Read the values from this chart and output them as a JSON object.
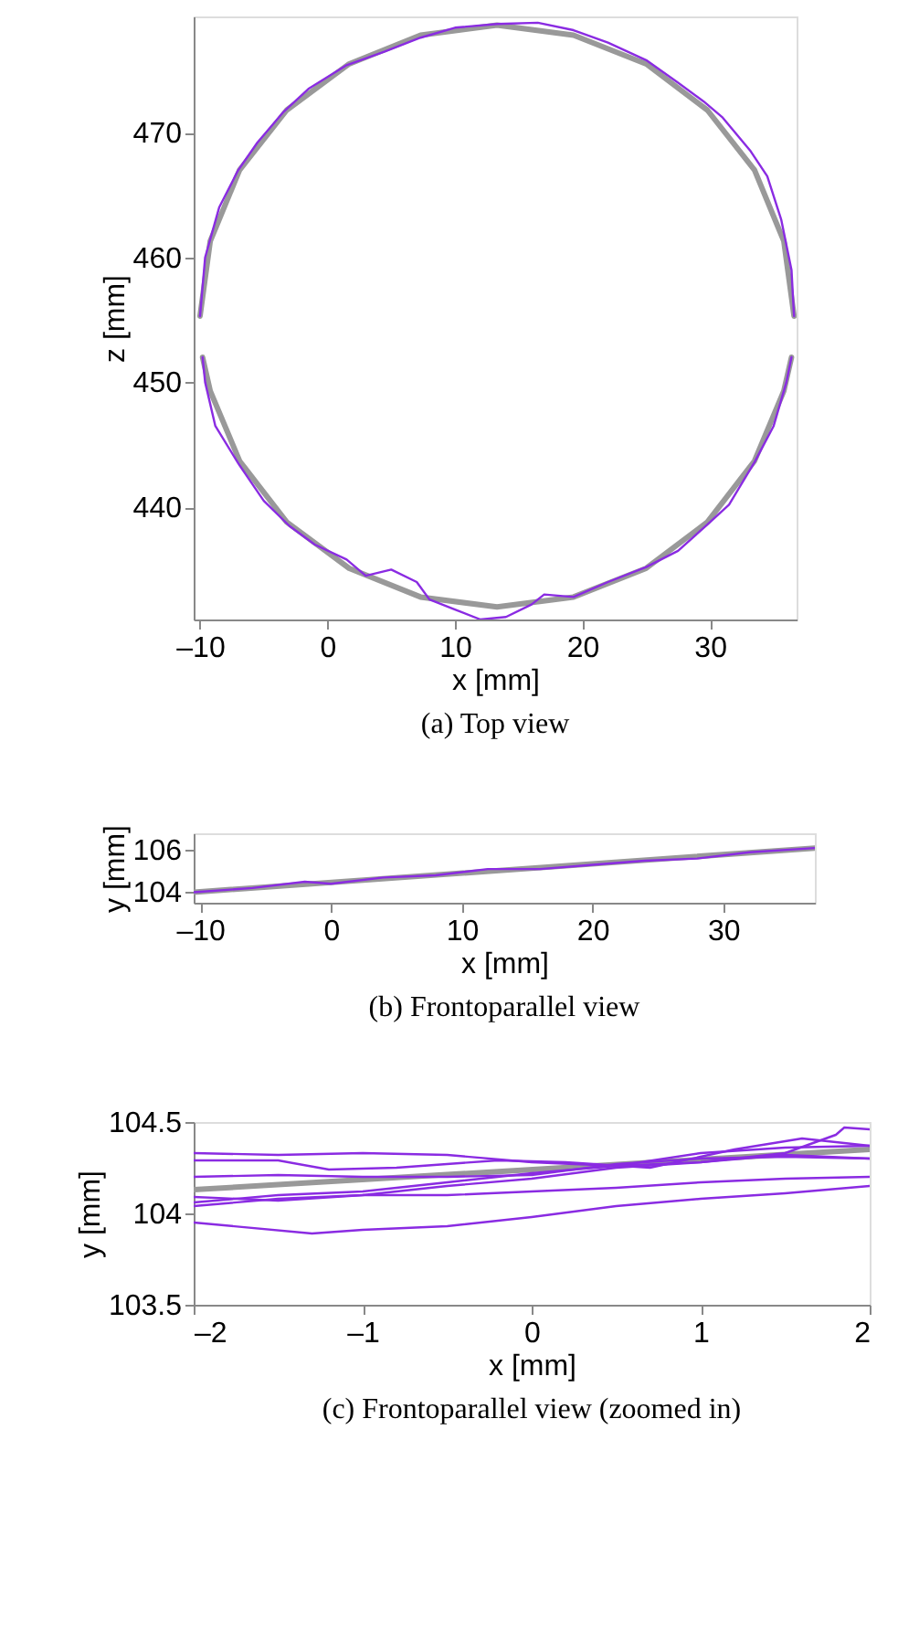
{
  "chart_data": [
    {
      "type": "line",
      "title": "(a) Top view",
      "xlabel": "x [mm]",
      "ylabel": "z [mm]",
      "xlim": [
        -10.5,
        36.8
      ],
      "ylim": [
        431,
        479.3
      ],
      "xticks": [
        {
          "value": -10,
          "label": "–10"
        },
        0,
        10,
        20,
        30
      ],
      "yticks": [
        440,
        450,
        460,
        470
      ],
      "series": [
        {
          "color": "#999999",
          "x": [
            -10.0,
            -9.2,
            -6.9,
            -3.2,
            1.7,
            7.3,
            13.3,
            19.3,
            25.0,
            29.8,
            33.5,
            35.8,
            36.6
          ],
          "values": [
            455.3,
            461.3,
            467.0,
            471.8,
            475.5,
            477.8,
            478.6,
            477.8,
            475.5,
            471.8,
            467.0,
            461.3,
            455.3
          ]
        },
        {
          "color": "#999999",
          "x": [
            -9.8,
            -9.2,
            -6.9,
            -3.2,
            1.7,
            7.3,
            13.3,
            19.3,
            25.0,
            29.8,
            33.5,
            35.8,
            36.4
          ],
          "values": [
            452.0,
            449.3,
            443.7,
            438.8,
            435.1,
            432.8,
            432.0,
            432.8,
            435.1,
            438.8,
            443.7,
            449.3,
            452.0
          ]
        },
        {
          "color": "#8a2be2",
          "x": [
            -10.0,
            -9.6,
            -8.5,
            -7.0,
            -5.5,
            -3.5,
            -1.5,
            1.5,
            4.5,
            7.3,
            10.0,
            13.3,
            16.5,
            19.3,
            22.0,
            25.0,
            27.5,
            29.5,
            31.0,
            33.2,
            34.5,
            35.6,
            36.4,
            36.6
          ],
          "values": [
            455.3,
            460.0,
            464.0,
            467.0,
            469.2,
            471.6,
            473.5,
            475.4,
            476.5,
            477.6,
            478.4,
            478.7,
            478.8,
            478.2,
            477.2,
            475.8,
            474.0,
            472.5,
            471.2,
            468.5,
            466.5,
            463.0,
            459.0,
            455.3
          ]
        },
        {
          "color": "#8a2be2",
          "x": [
            -9.8,
            -9.6,
            -8.8,
            -7.0,
            -5.0,
            -3.0,
            -1.0,
            1.5,
            3.0,
            5.0,
            7.0,
            8.0,
            10.0,
            12.0,
            14.0,
            16.0,
            17.0,
            19.3,
            22.0,
            25.0,
            27.5,
            29.8,
            31.5,
            33.5,
            35.0,
            36.0,
            36.4
          ],
          "values": [
            452.0,
            450.0,
            446.5,
            443.5,
            440.5,
            438.5,
            437.0,
            435.8,
            434.5,
            435.0,
            434.0,
            432.6,
            431.8,
            431.0,
            431.2,
            432.2,
            433.0,
            432.8,
            434.0,
            435.2,
            436.5,
            438.6,
            440.2,
            443.6,
            446.5,
            450.0,
            452.0
          ]
        }
      ]
    },
    {
      "type": "line",
      "title": "(b) Frontoparallel view",
      "xlabel": "x [mm]",
      "ylabel": "y [mm]",
      "xlim": [
        -10.5,
        37
      ],
      "ylim": [
        103.5,
        106.8
      ],
      "xticks": [
        {
          "value": -10,
          "label": "–10"
        },
        0,
        10,
        20,
        30
      ],
      "yticks": [
        104,
        106
      ],
      "series": [
        {
          "color": "#999999",
          "x": [
            -10.5,
            37
          ],
          "values": [
            104.0,
            106.1
          ]
        },
        {
          "color": "#8a2be2",
          "x": [
            -10.5,
            -6,
            -2,
            0,
            4,
            8,
            12,
            16,
            20,
            24,
            28,
            32,
            37
          ],
          "values": [
            104.0,
            104.2,
            104.5,
            104.4,
            104.7,
            104.8,
            105.1,
            105.1,
            105.3,
            105.5,
            105.6,
            105.9,
            106.1
          ]
        }
      ]
    },
    {
      "type": "line",
      "title": "(c) Frontoparallel view (zoomed in)",
      "xlabel": "x [mm]",
      "ylabel": "y [mm]",
      "xlim": [
        -2,
        2
      ],
      "ylim": [
        103.5,
        104.5
      ],
      "xticks": [
        {
          "value": -2,
          "label": "–2"
        },
        {
          "value": -1,
          "label": "–1"
        },
        0,
        1,
        2
      ],
      "yticks": [
        103.5,
        104,
        104.5
      ],
      "series": [
        {
          "color": "#999999",
          "x": [
            -2,
            2
          ],
          "values": [
            104.13,
            104.35
          ]
        },
        {
          "color": "#8a2be2",
          "x": [
            -2,
            -1.5,
            -1,
            -0.5,
            0,
            0.5,
            1,
            1.5,
            2
          ],
          "values": [
            104.33,
            104.32,
            104.33,
            104.32,
            104.28,
            104.26,
            104.33,
            104.36,
            104.37
          ]
        },
        {
          "color": "#8a2be2",
          "x": [
            -2,
            -1.5,
            -1.2,
            -0.8,
            -0.2,
            0.2,
            0.7,
            1.2,
            1.6,
            2
          ],
          "values": [
            104.29,
            104.29,
            104.24,
            104.25,
            104.29,
            104.28,
            104.25,
            104.35,
            104.41,
            104.37
          ]
        },
        {
          "color": "#8a2be2",
          "x": [
            -2,
            -1.5,
            -1,
            -0.5,
            0,
            0.5,
            1,
            1.5,
            2
          ],
          "values": [
            104.06,
            104.1,
            104.12,
            104.17,
            104.22,
            104.26,
            104.28,
            104.32,
            104.3
          ]
        },
        {
          "color": "#8a2be2",
          "x": [
            -2,
            -1.5,
            -1,
            -0.5,
            0,
            0.5,
            1,
            1.5,
            1.8,
            1.85,
            2
          ],
          "values": [
            104.04,
            104.08,
            104.1,
            104.15,
            104.19,
            104.25,
            104.28,
            104.33,
            104.43,
            104.47,
            104.46
          ]
        },
        {
          "color": "#8a2be2",
          "x": [
            -2,
            -1.5,
            -1,
            -0.5,
            0,
            0.5,
            1,
            1.5,
            2
          ],
          "values": [
            104.09,
            104.07,
            104.1,
            104.1,
            104.12,
            104.14,
            104.17,
            104.19,
            104.2
          ]
        },
        {
          "color": "#8a2be2",
          "x": [
            -2,
            -1.3,
            -1,
            -0.5,
            0,
            0.5,
            1,
            1.5,
            2
          ],
          "values": [
            103.95,
            103.89,
            103.91,
            103.93,
            103.98,
            104.04,
            104.08,
            104.11,
            104.15
          ]
        },
        {
          "color": "#8a2be2",
          "x": [
            -2,
            -1.5,
            -1,
            -0.5,
            0,
            0.5,
            1,
            1.5,
            2
          ],
          "values": [
            104.2,
            104.21,
            104.2,
            104.2,
            104.21,
            104.27,
            104.3,
            104.31,
            104.3
          ]
        }
      ]
    }
  ]
}
